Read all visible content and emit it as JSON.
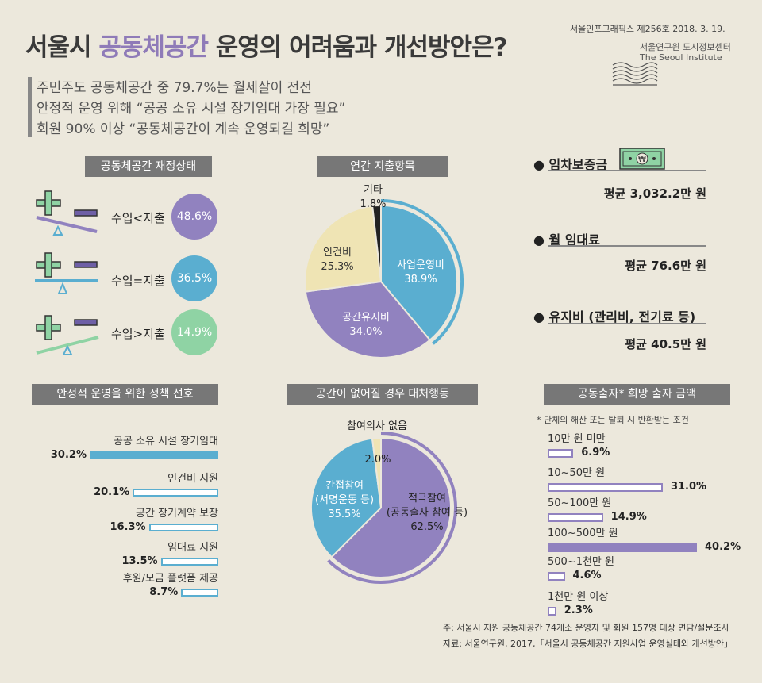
{
  "header": {
    "title_pre": "서울시 ",
    "title_hl": "공동체공간",
    "title_post": " 운영의 어려움과 개선방안은?",
    "issue": "서울인포그래픽스 제256호 2018. 3. 19.",
    "org": "서울연구원 도시정보센터",
    "org_en": "The Seoul Institute"
  },
  "summary": [
    "주민주도 공동체공간 중 79.7%는 월세살이 전전",
    "안정적 운영 위해 “공공 소유 시설 장기임대 가장 필요”",
    "회원 90% 이상 “공동체공간이 계속 운영되길 희망”"
  ],
  "finance": {
    "heading": "공동체공간 재정상태",
    "items": [
      {
        "label": "수입<지출",
        "value": "48.6%",
        "color": "#9182bf",
        "tilt": "left"
      },
      {
        "label": "수입=지출",
        "value": "36.5%",
        "color": "#5aaed0",
        "tilt": "flat"
      },
      {
        "label": "수입>지출",
        "value": "14.9%",
        "color": "#8fd3a4",
        "tilt": "right"
      }
    ]
  },
  "costs": [
    {
      "label": "임차보증금",
      "value": "평균 3,032.2만 원"
    },
    {
      "label": "월 임대료",
      "value": "평균 76.6만 원"
    },
    {
      "label": "유지비 (관리비, 전기료 등)",
      "value": "평균 40.5만 원"
    }
  ],
  "chart_data": [
    {
      "type": "pie",
      "title": "연간 지출항목",
      "slices": [
        {
          "label": "사업운영비",
          "value": 38.9,
          "text": "38.9%",
          "color": "#5aaed0"
        },
        {
          "label": "공간유지비",
          "value": 34.0,
          "text": "34.0%",
          "color": "#9182bf"
        },
        {
          "label": "인건비",
          "value": 25.3,
          "text": "25.3%",
          "color": "#efe4b4"
        },
        {
          "label": "기타",
          "value": 1.8,
          "text": "1.8%",
          "color": "#222222"
        }
      ]
    },
    {
      "type": "pie",
      "title": "공간이 없어질 경우 대처행동",
      "slices": [
        {
          "label": "적극참여",
          "sublabel": "(공동출자 참여 등)",
          "value": 62.5,
          "text": "62.5%",
          "color": "#9182bf"
        },
        {
          "label": "간접참여",
          "sublabel": "(서명운동 등)",
          "value": 35.5,
          "text": "35.5%",
          "color": "#5aaed0"
        },
        {
          "label": "참여의사 없음",
          "value": 2.0,
          "text": "2.0%",
          "color": "#efe4b4"
        }
      ]
    },
    {
      "type": "bar",
      "title": "안정적 운영을 위한 정책 선호",
      "categories": [
        "공공 소유 시설 장기임대",
        "인건비 지원",
        "공간 장기계약 보장",
        "임대료 지원",
        "후원/모금 플랫폼 제공"
      ],
      "values": [
        30.2,
        20.1,
        16.3,
        13.5,
        8.7
      ],
      "texts": [
        "30.2%",
        "20.1%",
        "16.3%",
        "13.5%",
        "8.7%"
      ],
      "color": "#5aaed0"
    },
    {
      "type": "bar",
      "title": "공동출자* 희망 출자 금액",
      "note": "* 단체의 해산 또는 탈퇴 시 반환받는 조건",
      "categories": [
        "10만 원 미만",
        "10~50만 원",
        "50~100만 원",
        "100~500만 원",
        "500~1천만 원",
        "1천만 원 이상"
      ],
      "values": [
        6.9,
        31.0,
        14.9,
        40.2,
        4.6,
        2.3
      ],
      "texts": [
        "6.9%",
        "31.0%",
        "14.9%",
        "40.2%",
        "4.6%",
        "2.3%"
      ],
      "color": "#9182bf",
      "highlight_index": 3
    }
  ],
  "footer": {
    "note": "주: 서울시 지원 공동체공간 74개소 운영자 및 회원 157명 대상  면담/설문조사",
    "source": "자료: 서울연구원, 2017,「서울시 공동체공간 지원사업 운영실태와 개선방안」"
  }
}
